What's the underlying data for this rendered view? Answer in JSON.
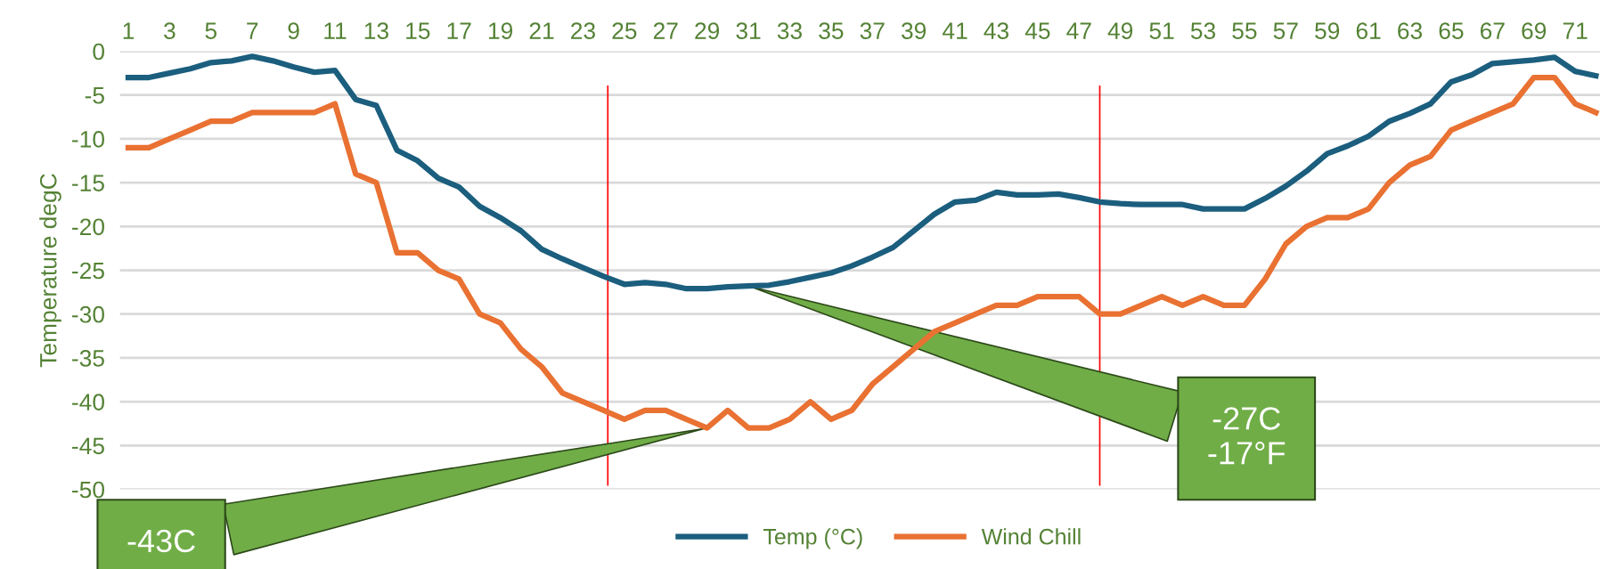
{
  "chart_data": {
    "type": "line",
    "ylabel": "Temperature degC",
    "x": [
      1,
      2,
      3,
      4,
      5,
      6,
      7,
      8,
      9,
      10,
      11,
      12,
      13,
      14,
      15,
      16,
      17,
      18,
      19,
      20,
      21,
      22,
      23,
      24,
      25,
      26,
      27,
      28,
      29,
      30,
      31,
      32,
      33,
      34,
      35,
      36,
      37,
      38,
      39,
      40,
      41,
      42,
      43,
      44,
      45,
      46,
      47,
      48,
      49,
      50,
      51,
      52,
      53,
      54,
      55,
      56,
      57,
      58,
      59,
      60,
      61,
      62,
      63,
      64,
      65,
      66,
      67,
      68,
      69,
      70,
      71,
      72
    ],
    "series": [
      {
        "name": "Temp (°C)",
        "color": "#1b5e7e",
        "values": [
          -3,
          -3,
          -2.5,
          -2,
          -1.3,
          -1.1,
          -0.6,
          -1.1,
          -1.8,
          -2.4,
          -2.2,
          -5.5,
          -6.2,
          -11.3,
          -12.5,
          -14.5,
          -15.5,
          -17.7,
          -19,
          -20.5,
          -22.6,
          -23.7,
          -24.7,
          -25.7,
          -26.6,
          -26.4,
          -26.6,
          -27.1,
          -27.1,
          -26.9,
          -26.8,
          -26.7,
          -26.3,
          -25.8,
          -25.3,
          -24.5,
          -23.5,
          -22.4,
          -20.5,
          -18.6,
          -17.2,
          -17,
          -16.1,
          -16.4,
          -16.4,
          -16.3,
          -16.7,
          -17.2,
          -17.4,
          -17.5,
          -17.5,
          -17.5,
          -18,
          -18,
          -18,
          -16.8,
          -15.4,
          -13.7,
          -11.7,
          -10.8,
          -9.7,
          -8,
          -7.1,
          -6,
          -3.5,
          -2.7,
          -1.4,
          -1.2,
          -1,
          -0.7,
          -2.3,
          -2.8
        ]
      },
      {
        "name": "Wind Chill",
        "color": "#e97132",
        "values": [
          -11,
          -11,
          -10,
          -9,
          -8,
          -8,
          -7,
          -7,
          -7,
          -7,
          -6,
          -14,
          -15,
          -23,
          -23,
          -25,
          -26,
          -30,
          -31,
          -34,
          -36,
          -39,
          -40,
          -41,
          -42,
          -41,
          -41,
          -42,
          -43,
          -41,
          -43,
          -43,
          -42,
          -40,
          -42,
          -41,
          -38,
          -36,
          -34,
          -32,
          -31,
          -30,
          -29,
          -29,
          -28,
          -28,
          -28,
          -30,
          -30,
          -29,
          -28,
          -29,
          -28,
          -29,
          -29,
          -26,
          -22,
          -20,
          -19,
          -19,
          -18,
          -15,
          -13,
          -12,
          -9,
          -8,
          -7,
          -6,
          -3,
          -3,
          -6,
          -7
        ]
      }
    ],
    "xlim": [
      0.6,
      72.2
    ],
    "xticks": [
      1,
      3,
      5,
      7,
      9,
      11,
      13,
      15,
      17,
      19,
      21,
      23,
      25,
      27,
      29,
      31,
      33,
      35,
      37,
      39,
      41,
      43,
      45,
      47,
      49,
      51,
      53,
      55,
      57,
      59,
      61,
      63,
      65,
      67,
      69,
      71
    ],
    "ylim": [
      -50,
      0
    ],
    "yticks": [
      -50,
      -45,
      -40,
      -35,
      -30,
      -25,
      -20,
      -15,
      -10,
      -5,
      0
    ],
    "grid": "y",
    "legend": "bottom",
    "marker": "none",
    "line_style": "solid",
    "ref_lines": [
      {
        "axis": "x",
        "value": 24.2,
        "color": "#ff0000"
      },
      {
        "axis": "x",
        "value": 48,
        "color": "#ff0000"
      }
    ],
    "annotations": [
      {
        "text": "-27C\n-17°F",
        "x": 31,
        "y": -26.8
      },
      {
        "text": "-43C",
        "x": 29,
        "y": -43
      }
    ]
  }
}
